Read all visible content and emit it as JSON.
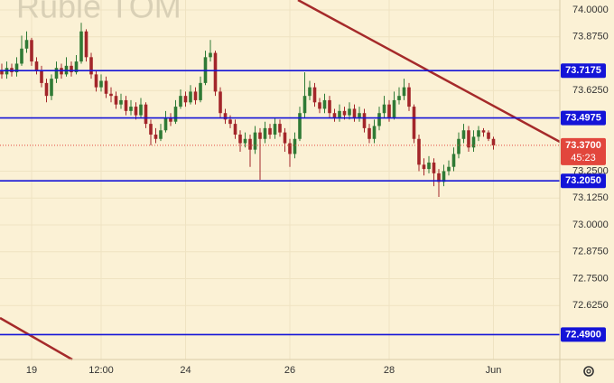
{
  "chart_data": {
    "type": "candlestick",
    "title": "Ruble TOM",
    "categories": [
      null,
      null,
      null,
      null,
      null,
      null,
      "19",
      null,
      null,
      null,
      null,
      null,
      null,
      null,
      null,
      null,
      null,
      null,
      null,
      null,
      "12:00",
      null,
      null,
      null,
      null,
      null,
      null,
      null,
      null,
      null,
      null,
      null,
      null,
      null,
      null,
      null,
      null,
      "24",
      null,
      null,
      null,
      null,
      null,
      null,
      null,
      null,
      null,
      null,
      null,
      null,
      null,
      null,
      null,
      null,
      null,
      null,
      null,
      null,
      "26",
      null,
      null,
      null,
      null,
      null,
      null,
      null,
      null,
      null,
      null,
      null,
      null,
      null,
      null,
      null,
      null,
      null,
      null,
      null,
      "28",
      null,
      null,
      null,
      null,
      null,
      null,
      null,
      null,
      null,
      null,
      null,
      null,
      null,
      null,
      null,
      null,
      null,
      null,
      null,
      null,
      "Jun"
    ],
    "open": [
      73.72,
      73.7,
      73.73,
      73.71,
      73.75,
      73.82,
      73.86,
      73.76,
      73.72,
      73.66,
      73.6,
      73.68,
      73.73,
      73.7,
      73.74,
      73.71,
      73.76,
      73.9,
      73.78,
      73.7,
      73.64,
      73.67,
      73.61,
      73.6,
      73.56,
      73.58,
      73.53,
      73.55,
      73.51,
      73.56,
      73.47,
      73.42,
      73.4,
      73.44,
      73.5,
      73.48,
      73.55,
      73.6,
      73.57,
      73.62,
      73.58,
      73.66,
      73.78,
      73.8,
      73.62,
      73.52,
      73.49,
      73.47,
      73.42,
      73.38,
      73.4,
      73.35,
      73.43,
      73.4,
      73.45,
      73.42,
      73.47,
      73.43,
      73.38,
      73.33,
      73.4,
      73.52,
      73.6,
      73.64,
      73.57,
      73.54,
      73.58,
      73.52,
      73.5,
      73.53,
      73.51,
      73.54,
      73.5,
      73.52,
      73.45,
      73.4,
      73.46,
      73.52,
      73.56,
      73.5,
      73.58,
      73.6,
      73.64,
      73.55,
      73.4,
      73.28,
      73.26,
      73.29,
      73.24,
      73.2,
      73.25,
      73.27,
      73.33,
      73.4,
      73.44,
      73.36,
      73.41,
      73.44,
      73.43,
      73.4
    ],
    "high": [
      73.75,
      73.76,
      73.75,
      73.78,
      73.88,
      73.9,
      73.87,
      73.78,
      73.74,
      73.68,
      73.7,
      73.76,
      73.75,
      73.78,
      73.76,
      73.79,
      73.94,
      73.91,
      73.8,
      73.72,
      73.7,
      73.69,
      73.64,
      73.62,
      73.61,
      73.6,
      73.58,
      73.57,
      73.59,
      73.57,
      73.49,
      73.45,
      73.47,
      73.53,
      73.52,
      73.58,
      73.63,
      73.62,
      73.65,
      73.64,
      73.69,
      73.81,
      73.86,
      73.81,
      73.64,
      73.54,
      73.51,
      73.49,
      73.44,
      73.43,
      73.42,
      73.46,
      73.45,
      73.48,
      73.47,
      73.5,
      73.49,
      73.45,
      73.4,
      73.43,
      73.55,
      73.71,
      73.67,
      73.66,
      73.59,
      73.61,
      73.6,
      73.54,
      73.56,
      73.55,
      73.57,
      73.56,
      73.55,
      73.54,
      73.47,
      73.49,
      73.55,
      73.6,
      73.58,
      73.62,
      73.64,
      73.68,
      73.66,
      73.56,
      73.42,
      73.31,
      73.32,
      73.31,
      73.26,
      73.28,
      73.3,
      73.36,
      73.43,
      73.47,
      73.46,
      73.44,
      73.46,
      73.45,
      73.44,
      73.41
    ],
    "low": [
      73.68,
      73.68,
      73.69,
      73.69,
      73.74,
      73.8,
      73.74,
      73.7,
      73.64,
      73.57,
      73.58,
      73.66,
      73.68,
      73.69,
      73.69,
      73.7,
      73.75,
      73.76,
      73.68,
      73.62,
      73.62,
      73.59,
      73.57,
      73.54,
      73.54,
      73.51,
      73.51,
      73.49,
      73.5,
      73.45,
      73.37,
      73.38,
      73.39,
      73.43,
      73.46,
      73.47,
      73.54,
      73.55,
      73.56,
      73.56,
      73.57,
      73.65,
      73.76,
      73.6,
      73.5,
      73.47,
      73.45,
      73.4,
      73.34,
      73.36,
      73.27,
      73.33,
      73.21,
      73.38,
      73.4,
      73.4,
      73.41,
      73.34,
      73.27,
      73.31,
      73.39,
      73.5,
      73.58,
      73.55,
      73.52,
      73.52,
      73.5,
      73.48,
      73.48,
      73.49,
      73.49,
      73.48,
      73.48,
      73.43,
      73.38,
      73.38,
      73.44,
      73.5,
      73.48,
      73.49,
      73.56,
      73.58,
      73.53,
      73.38,
      73.25,
      73.23,
      73.24,
      73.18,
      73.13,
      73.18,
      73.23,
      73.25,
      73.31,
      73.38,
      73.34,
      73.34,
      73.39,
      73.41,
      73.39,
      73.35
    ],
    "close": [
      73.7,
      73.73,
      73.71,
      73.75,
      73.82,
      73.86,
      73.76,
      73.72,
      73.66,
      73.6,
      73.68,
      73.73,
      73.7,
      73.74,
      73.71,
      73.76,
      73.9,
      73.78,
      73.7,
      73.64,
      73.67,
      73.61,
      73.6,
      73.56,
      73.58,
      73.53,
      73.55,
      73.51,
      73.56,
      73.47,
      73.42,
      73.4,
      73.44,
      73.5,
      73.48,
      73.55,
      73.6,
      73.57,
      73.62,
      73.58,
      73.66,
      73.78,
      73.8,
      73.62,
      73.52,
      73.49,
      73.47,
      73.42,
      73.38,
      73.4,
      73.35,
      73.43,
      73.4,
      73.45,
      73.42,
      73.47,
      73.43,
      73.38,
      73.33,
      73.4,
      73.52,
      73.6,
      73.64,
      73.57,
      73.54,
      73.58,
      73.52,
      73.5,
      73.53,
      73.51,
      73.54,
      73.5,
      73.52,
      73.45,
      73.4,
      73.46,
      73.52,
      73.56,
      73.5,
      73.58,
      73.6,
      73.64,
      73.55,
      73.4,
      73.28,
      73.26,
      73.29,
      73.24,
      73.2,
      73.25,
      73.27,
      73.33,
      73.4,
      73.44,
      73.36,
      73.41,
      73.44,
      73.43,
      73.4,
      73.37
    ],
    "up_color": "#2f7a35",
    "down_color": "#a3262a",
    "ylim": [
      72.374,
      74.046
    ],
    "yticks": [
      {
        "value": 74,
        "label": "74.0000"
      },
      {
        "value": 73.875,
        "label": "73.8750"
      },
      {
        "value": 73.625,
        "label": "73.6250"
      },
      {
        "value": 73.25,
        "label": "73.2500"
      },
      {
        "value": 73.125,
        "label": "73.1250"
      },
      {
        "value": 73,
        "label": "73.0000"
      },
      {
        "value": 72.875,
        "label": "72.8750"
      },
      {
        "value": 72.75,
        "label": "72.7500"
      },
      {
        "value": 72.625,
        "label": "72.6250"
      }
    ],
    "grid": true,
    "levels": [
      {
        "value": 73.7175,
        "label": "73.7175"
      },
      {
        "value": 73.4975,
        "label": "73.4975"
      },
      {
        "value": 73.205,
        "label": "73.2050"
      },
      {
        "value": 72.49,
        "label": "72.4900"
      }
    ],
    "level_color": "#1414d8",
    "current": {
      "value": 73.37,
      "label": "73.3700",
      "timer": "45:23",
      "color": "#e2463c"
    }
  }
}
